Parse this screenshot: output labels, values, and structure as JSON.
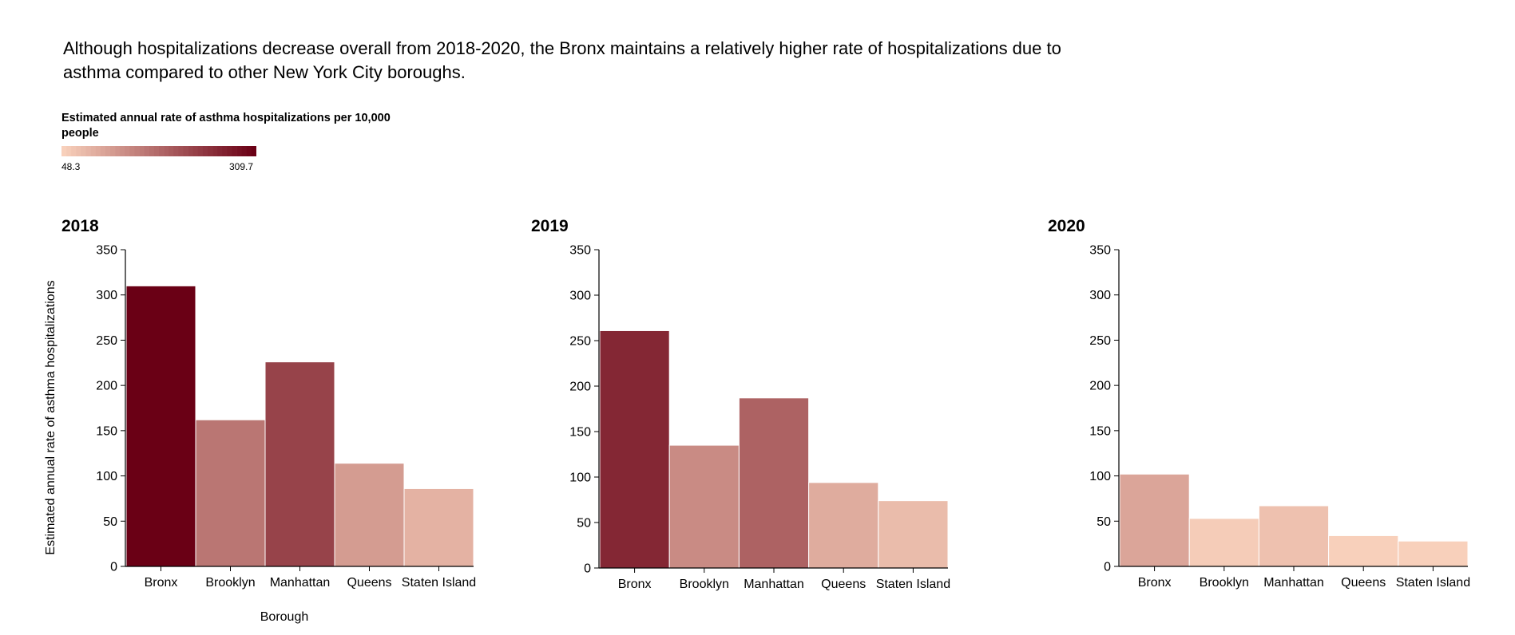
{
  "headline": "Although hospitalizations decrease overall from 2018-2020, the Bronx maintains a relatively higher rate of hospitalizations due to asthma compared to other New York City boroughs.",
  "legend": {
    "title": "Estimated annual rate of asthma hospitalizations per 10,000 people",
    "min_label": "48.3",
    "max_label": "309.7",
    "min_value": 48.3,
    "max_value": 309.7,
    "color_low": "#f8d0bb",
    "color_high": "#6a0015"
  },
  "chart_data": [
    {
      "type": "bar",
      "title": "2018",
      "categories": [
        "Bronx",
        "Brooklyn",
        "Manhattan",
        "Queens",
        "Staten Island"
      ],
      "values": [
        310,
        162,
        226,
        114,
        86
      ],
      "xlabel": "Borough",
      "ylabel": "Estimated annual rate of asthma hospitalizations",
      "ylim": [
        0,
        350
      ],
      "yticks": [
        "0",
        "50",
        "100",
        "150",
        "200",
        "250",
        "300",
        "350"
      ]
    },
    {
      "type": "bar",
      "title": "2019",
      "categories": [
        "Bronx",
        "Brooklyn",
        "Manhattan",
        "Queens",
        "Staten Island"
      ],
      "values": [
        261,
        135,
        187,
        94,
        74
      ],
      "xlabel": "",
      "ylabel": "",
      "ylim": [
        0,
        350
      ],
      "yticks": [
        "0",
        "50",
        "100",
        "150",
        "200",
        "250",
        "300",
        "350"
      ]
    },
    {
      "type": "bar",
      "title": "2020",
      "categories": [
        "Bronx",
        "Brooklyn",
        "Manhattan",
        "Queens",
        "Staten Island"
      ],
      "values": [
        102,
        53,
        67,
        34,
        28
      ],
      "xlabel": "",
      "ylabel": "",
      "ylim": [
        0,
        350
      ],
      "yticks": [
        "0",
        "50",
        "100",
        "150",
        "200",
        "250",
        "300",
        "350"
      ]
    }
  ]
}
